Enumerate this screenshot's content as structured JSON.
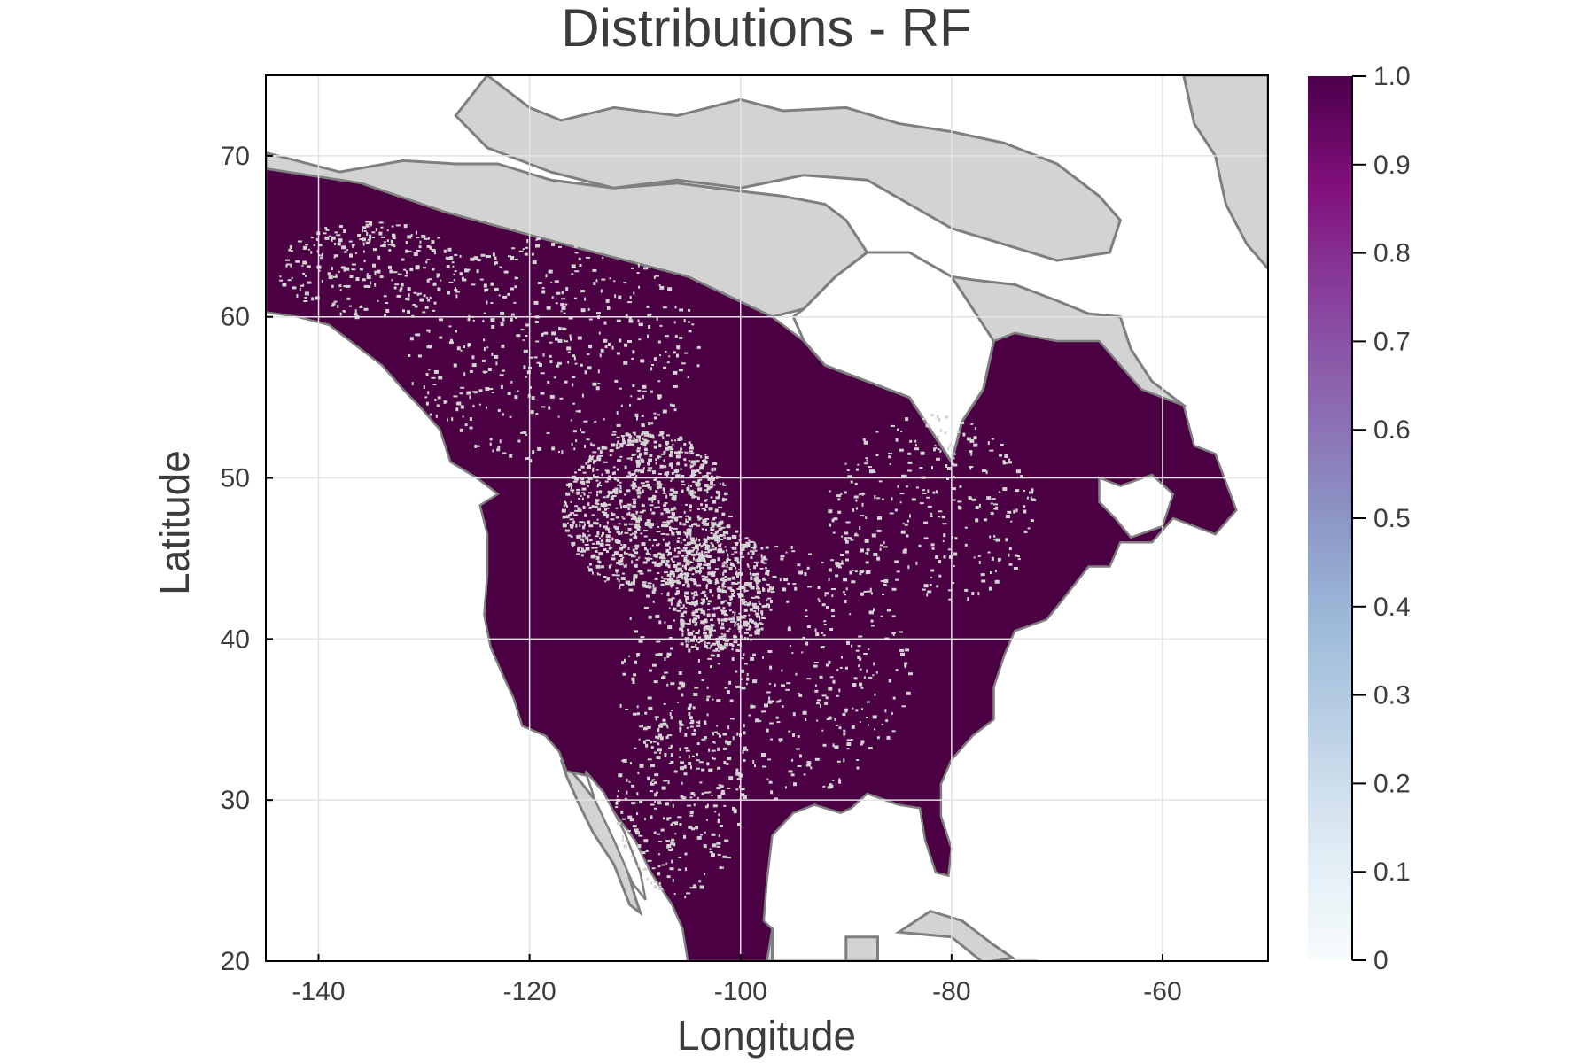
{
  "figure": {
    "title": "Distributions - RF",
    "xlabel": "Longitude",
    "ylabel": "Latitude"
  },
  "map": {
    "x_range": [
      -145,
      -50
    ],
    "y_range": [
      20,
      75
    ],
    "x_ticks": [
      -140,
      -120,
      -100,
      -80,
      -60
    ],
    "y_ticks": [
      20,
      30,
      40,
      50,
      60,
      70
    ],
    "grid": true,
    "land_color": "#d3d3d3",
    "coast_color": "#7f7f7f",
    "presence_color": "#4c0044",
    "ocean_color": "#ffffff",
    "presence_value": 1.0
  },
  "colorbar": {
    "range": [
      0,
      1
    ],
    "ticks": [
      "0",
      "0.1",
      "0.2",
      "0.3",
      "0.4",
      "0.5",
      "0.6",
      "0.7",
      "0.8",
      "0.9",
      "1.0"
    ],
    "colors": [
      "#f7fcfd",
      "#e0ecf4",
      "#bfd3e6",
      "#9ebcda",
      "#8c96c6",
      "#8c6bb1",
      "#88419d",
      "#810f7c",
      "#4d004b"
    ],
    "placement": "right"
  }
}
